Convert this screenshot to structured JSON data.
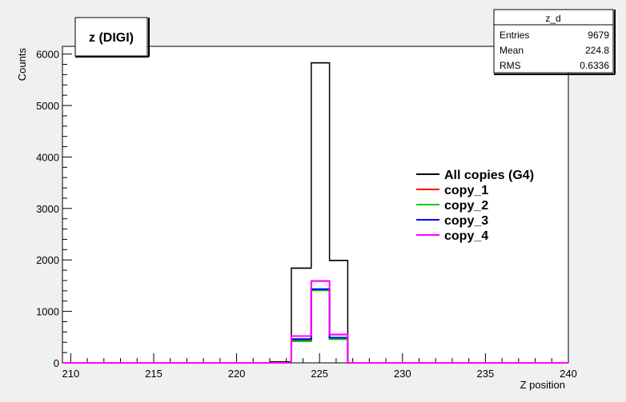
{
  "chart_data": {
    "type": "histogram",
    "title": "z (DIGI)",
    "xlabel": "Z position",
    "ylabel": "Counts",
    "xlim": [
      209.5,
      240
    ],
    "ylim": [
      0,
      6150
    ],
    "x_ticks": [
      210,
      215,
      220,
      225,
      230,
      235,
      240
    ],
    "y_ticks": [
      0,
      1000,
      2000,
      3000,
      4000,
      5000,
      6000
    ],
    "x_tick_labels": [
      "210",
      "215",
      "220",
      "225",
      "230",
      "235",
      "240"
    ],
    "y_tick_labels": [
      "0",
      "1000",
      "2000",
      "3000",
      "4000",
      "5000",
      "6000"
    ],
    "grid": false,
    "legend_position": "right-middle",
    "series": [
      {
        "name": "All copies (G4)",
        "color": "#000000",
        "bins": [
          {
            "x0": 222.0,
            "x1": 223.3,
            "y": 20
          },
          {
            "x0": 223.3,
            "x1": 224.5,
            "y": 1840
          },
          {
            "x0": 224.5,
            "x1": 225.6,
            "y": 5830
          },
          {
            "x0": 225.6,
            "x1": 226.7,
            "y": 1990
          }
        ]
      },
      {
        "name": "copy_1",
        "color": "#ff0000",
        "bins": [
          {
            "x0": 223.3,
            "x1": 224.5,
            "y": 440
          },
          {
            "x0": 224.5,
            "x1": 225.6,
            "y": 1420
          },
          {
            "x0": 225.6,
            "x1": 226.7,
            "y": 470
          }
        ]
      },
      {
        "name": "copy_2",
        "color": "#00cc00",
        "bins": [
          {
            "x0": 223.3,
            "x1": 224.5,
            "y": 420
          },
          {
            "x0": 224.5,
            "x1": 225.6,
            "y": 1410
          },
          {
            "x0": 225.6,
            "x1": 226.7,
            "y": 460
          }
        ]
      },
      {
        "name": "copy_3",
        "color": "#0000ff",
        "bins": [
          {
            "x0": 223.3,
            "x1": 224.5,
            "y": 460
          },
          {
            "x0": 224.5,
            "x1": 225.6,
            "y": 1430
          },
          {
            "x0": 225.6,
            "x1": 226.7,
            "y": 490
          }
        ]
      },
      {
        "name": "copy_4",
        "color": "#ff00ff",
        "bins": [
          {
            "x0": 223.3,
            "x1": 224.5,
            "y": 520
          },
          {
            "x0": 224.5,
            "x1": 225.6,
            "y": 1590
          },
          {
            "x0": 225.6,
            "x1": 226.7,
            "y": 550
          }
        ]
      }
    ],
    "stats_box": {
      "title": "z_d",
      "rows": [
        {
          "label": "Entries",
          "value": "9679"
        },
        {
          "label": "Mean",
          "value": "224.8"
        },
        {
          "label": "RMS",
          "value": "0.6336"
        }
      ]
    }
  }
}
